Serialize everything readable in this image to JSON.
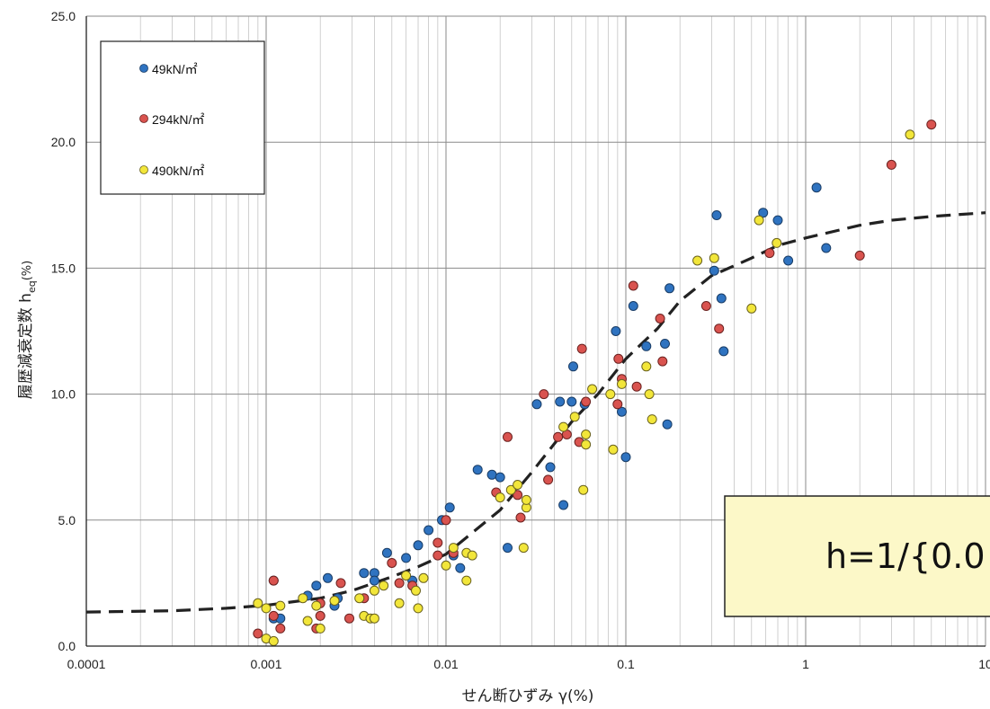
{
  "chart_data": {
    "type": "scatter",
    "xlabel": "せん断ひずみ γ(%)",
    "ylabel_main": "履歴減衰定数 ",
    "ylabel_sym": "h",
    "ylabel_sub": "eq",
    "ylabel_unit": "(%)",
    "xscale": "log",
    "xlim": [
      0.0001,
      10
    ],
    "ylim": [
      0,
      25
    ],
    "x_ticks": [
      "0.0001",
      "0.001",
      "0.01",
      "0.1",
      "1",
      "10"
    ],
    "y_ticks": [
      "0.0",
      "5.0",
      "10.0",
      "15.0",
      "20.0",
      "25.0"
    ],
    "grid": true,
    "legend_position": "top-left",
    "annotation": "h=1/{0.0",
    "colors": {
      "49kN": "#2f73c0",
      "294kN": "#d9534f",
      "490kN": "#f2e63a",
      "fit_line": "#222222",
      "annotation_box": "#fcf8c8"
    },
    "series": [
      {
        "name": "49kN/㎡",
        "color": "#2f73c0",
        "points": [
          [
            0.0011,
            2.6
          ],
          [
            0.0011,
            1.1
          ],
          [
            0.0012,
            1.1
          ],
          [
            0.0017,
            2.0
          ],
          [
            0.0019,
            2.4
          ],
          [
            0.0022,
            2.7
          ],
          [
            0.0024,
            1.6
          ],
          [
            0.0025,
            1.9
          ],
          [
            0.0035,
            2.9
          ],
          [
            0.004,
            2.9
          ],
          [
            0.004,
            2.6
          ],
          [
            0.0047,
            3.7
          ],
          [
            0.006,
            3.5
          ],
          [
            0.0065,
            2.6
          ],
          [
            0.007,
            4.0
          ],
          [
            0.008,
            4.6
          ],
          [
            0.0095,
            5.0
          ],
          [
            0.0105,
            5.5
          ],
          [
            0.011,
            3.6
          ],
          [
            0.012,
            3.1
          ],
          [
            0.015,
            7.0
          ],
          [
            0.018,
            6.8
          ],
          [
            0.02,
            6.7
          ],
          [
            0.022,
            3.9
          ],
          [
            0.032,
            9.6
          ],
          [
            0.038,
            7.1
          ],
          [
            0.043,
            9.7
          ],
          [
            0.045,
            5.6
          ],
          [
            0.05,
            9.7
          ],
          [
            0.051,
            11.1
          ],
          [
            0.059,
            9.6
          ],
          [
            0.088,
            12.5
          ],
          [
            0.095,
            9.3
          ],
          [
            0.1,
            7.5
          ],
          [
            0.11,
            13.5
          ],
          [
            0.13,
            11.9
          ],
          [
            0.165,
            12.0
          ],
          [
            0.17,
            8.8
          ],
          [
            0.175,
            14.2
          ],
          [
            0.31,
            14.9
          ],
          [
            0.32,
            17.1
          ],
          [
            0.34,
            13.8
          ],
          [
            0.35,
            11.7
          ],
          [
            0.58,
            17.2
          ],
          [
            0.7,
            16.9
          ],
          [
            0.8,
            15.3
          ],
          [
            1.15,
            18.2
          ],
          [
            1.3,
            15.8
          ]
        ]
      },
      {
        "name": "294kN/㎡",
        "color": "#d9534f",
        "points": [
          [
            0.0009,
            0.5
          ],
          [
            0.0011,
            2.6
          ],
          [
            0.0011,
            1.2
          ],
          [
            0.0012,
            0.7
          ],
          [
            0.0019,
            0.7
          ],
          [
            0.002,
            1.2
          ],
          [
            0.002,
            1.7
          ],
          [
            0.0026,
            2.5
          ],
          [
            0.0029,
            1.1
          ],
          [
            0.0035,
            1.9
          ],
          [
            0.005,
            3.3
          ],
          [
            0.0055,
            2.5
          ],
          [
            0.0065,
            2.4
          ],
          [
            0.009,
            3.6
          ],
          [
            0.009,
            4.1
          ],
          [
            0.01,
            5.0
          ],
          [
            0.011,
            3.7
          ],
          [
            0.019,
            6.1
          ],
          [
            0.022,
            8.3
          ],
          [
            0.025,
            6.0
          ],
          [
            0.026,
            5.1
          ],
          [
            0.035,
            10.0
          ],
          [
            0.037,
            6.6
          ],
          [
            0.042,
            8.3
          ],
          [
            0.047,
            8.4
          ],
          [
            0.055,
            8.1
          ],
          [
            0.057,
            11.8
          ],
          [
            0.06,
            9.7
          ],
          [
            0.09,
            9.6
          ],
          [
            0.091,
            11.4
          ],
          [
            0.095,
            10.6
          ],
          [
            0.11,
            14.3
          ],
          [
            0.115,
            10.3
          ],
          [
            0.155,
            13.0
          ],
          [
            0.16,
            11.3
          ],
          [
            0.28,
            13.5
          ],
          [
            0.33,
            12.6
          ],
          [
            0.63,
            15.6
          ],
          [
            2.0,
            15.5
          ],
          [
            3.0,
            19.1
          ],
          [
            5.0,
            20.7
          ]
        ]
      },
      {
        "name": "490kN/㎡",
        "color": "#f2e63a",
        "points": [
          [
            0.0009,
            1.7
          ],
          [
            0.001,
            1.5
          ],
          [
            0.001,
            0.3
          ],
          [
            0.0011,
            0.2
          ],
          [
            0.0012,
            1.6
          ],
          [
            0.0016,
            1.9
          ],
          [
            0.0017,
            1.0
          ],
          [
            0.0019,
            1.6
          ],
          [
            0.002,
            0.7
          ],
          [
            0.0024,
            1.8
          ],
          [
            0.0033,
            1.9
          ],
          [
            0.0035,
            1.2
          ],
          [
            0.0038,
            1.1
          ],
          [
            0.004,
            1.1
          ],
          [
            0.004,
            2.2
          ],
          [
            0.0045,
            2.4
          ],
          [
            0.0055,
            1.7
          ],
          [
            0.006,
            2.8
          ],
          [
            0.0068,
            2.2
          ],
          [
            0.007,
            1.5
          ],
          [
            0.0075,
            2.7
          ],
          [
            0.01,
            3.2
          ],
          [
            0.011,
            3.9
          ],
          [
            0.013,
            3.7
          ],
          [
            0.013,
            2.6
          ],
          [
            0.014,
            3.6
          ],
          [
            0.02,
            5.9
          ],
          [
            0.023,
            6.2
          ],
          [
            0.025,
            6.4
          ],
          [
            0.027,
            3.9
          ],
          [
            0.028,
            5.5
          ],
          [
            0.028,
            5.8
          ],
          [
            0.045,
            8.7
          ],
          [
            0.052,
            9.1
          ],
          [
            0.058,
            6.2
          ],
          [
            0.06,
            8.0
          ],
          [
            0.06,
            8.4
          ],
          [
            0.065,
            10.2
          ],
          [
            0.082,
            10.0
          ],
          [
            0.085,
            7.8
          ],
          [
            0.095,
            10.4
          ],
          [
            0.13,
            11.1
          ],
          [
            0.135,
            10.0
          ],
          [
            0.14,
            9.0
          ],
          [
            0.25,
            15.3
          ],
          [
            0.31,
            15.4
          ],
          [
            0.5,
            13.4
          ],
          [
            0.55,
            16.9
          ],
          [
            0.69,
            16.0
          ],
          [
            3.8,
            20.3
          ]
        ]
      }
    ],
    "fit_curve": {
      "style": "dashed",
      "points": [
        [
          0.0001,
          1.35
        ],
        [
          0.0003,
          1.4
        ],
        [
          0.0006,
          1.5
        ],
        [
          0.001,
          1.62
        ],
        [
          0.002,
          1.9
        ],
        [
          0.003,
          2.2
        ],
        [
          0.005,
          2.75
        ],
        [
          0.007,
          3.15
        ],
        [
          0.01,
          3.65
        ],
        [
          0.02,
          5.4
        ],
        [
          0.03,
          6.9
        ],
        [
          0.05,
          8.9
        ],
        [
          0.07,
          10.0
        ],
        [
          0.1,
          11.4
        ],
        [
          0.15,
          12.6
        ],
        [
          0.2,
          13.7
        ],
        [
          0.3,
          14.7
        ],
        [
          0.5,
          15.4
        ],
        [
          0.7,
          15.9
        ],
        [
          1.0,
          16.2
        ],
        [
          2.0,
          16.7
        ],
        [
          3.0,
          16.9
        ],
        [
          5.0,
          17.05
        ],
        [
          10.0,
          17.2
        ]
      ]
    }
  }
}
